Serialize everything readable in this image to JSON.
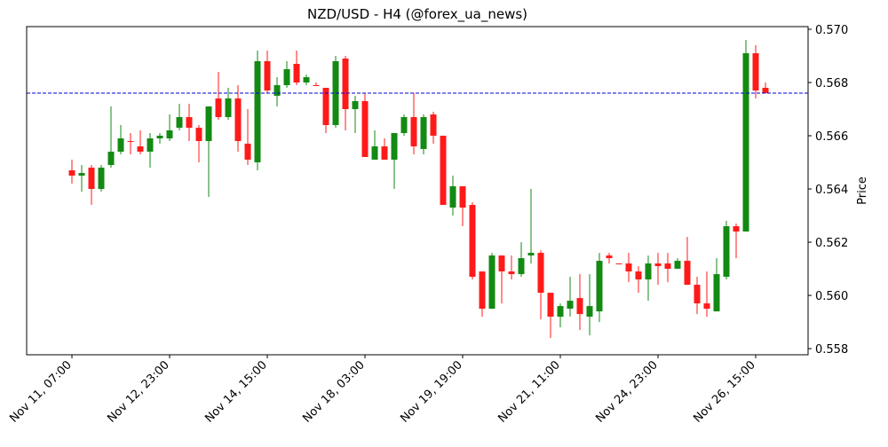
{
  "chart_data": {
    "type": "candlestick",
    "title": "NZD/USD - H4 (@forex_ua_news)",
    "y_label": "Price",
    "categories": [
      "Nov 11, 07:00",
      null,
      null,
      null,
      null,
      null,
      null,
      null,
      null,
      null,
      "Nov 12, 23:00",
      null,
      null,
      null,
      null,
      null,
      null,
      null,
      null,
      null,
      "Nov 14, 15:00",
      null,
      null,
      null,
      null,
      null,
      null,
      null,
      null,
      null,
      "Nov 18, 03:00",
      null,
      null,
      null,
      null,
      null,
      null,
      null,
      null,
      null,
      "Nov 19, 19:00",
      null,
      null,
      null,
      null,
      null,
      null,
      null,
      null,
      null,
      "Nov 21, 11:00",
      null,
      null,
      null,
      null,
      null,
      null,
      null,
      null,
      null,
      "Nov 24, 23:00",
      null,
      null,
      null,
      null,
      null,
      null,
      null,
      null,
      null,
      "Nov 26, 15:00",
      null
    ],
    "open": [
      0.5647,
      0.5645,
      0.5648,
      0.564,
      0.5649,
      0.5654,
      0.5658,
      0.5656,
      0.5654,
      0.5659,
      0.5659,
      0.5663,
      0.5667,
      0.5663,
      0.5658,
      0.5674,
      0.5667,
      0.5674,
      0.5657,
      0.565,
      0.5688,
      0.5675,
      0.5679,
      0.5687,
      0.568,
      0.5679,
      0.5678,
      0.5664,
      0.5689,
      0.567,
      0.5673,
      0.5651,
      0.5656,
      0.5651,
      0.5661,
      0.5667,
      0.5655,
      0.5668,
      0.566,
      0.5633,
      0.5641,
      0.5634,
      0.5609,
      0.5595,
      0.5615,
      0.5609,
      0.5608,
      0.5615,
      0.5616,
      0.5601,
      0.5592,
      0.5595,
      0.5599,
      0.5592,
      0.5594,
      0.5615,
      0.5612,
      0.5612,
      0.5609,
      0.5606,
      0.5612,
      0.5612,
      0.561,
      0.5613,
      0.5604,
      0.5597,
      0.5594,
      0.5607,
      0.5626,
      0.5624,
      0.5691,
      0.5678
    ],
    "high": [
      0.5651,
      0.5649,
      0.5649,
      0.5649,
      0.5671,
      0.5664,
      0.5661,
      0.5662,
      0.5661,
      0.5661,
      0.5668,
      0.5672,
      0.5672,
      0.5664,
      0.5671,
      0.5684,
      0.5678,
      0.5679,
      0.567,
      0.5692,
      0.5692,
      0.5682,
      0.5688,
      0.5692,
      0.5683,
      0.568,
      0.5678,
      0.569,
      0.569,
      0.5675,
      0.5676,
      0.5662,
      0.5659,
      0.5661,
      0.5668,
      0.5676,
      0.5668,
      0.5669,
      0.566,
      0.5645,
      0.5641,
      0.5635,
      0.5609,
      0.5616,
      0.5615,
      0.5615,
      0.562,
      0.564,
      0.5617,
      0.5601,
      0.5597,
      0.5607,
      0.5608,
      0.5608,
      0.5616,
      0.5616,
      0.5612,
      0.5616,
      0.5611,
      0.5615,
      0.5616,
      0.5616,
      0.5614,
      0.5622,
      0.5607,
      0.5609,
      0.5614,
      0.5628,
      0.5627,
      0.5696,
      0.5694,
      0.568
    ],
    "low": [
      0.5642,
      0.5639,
      0.5634,
      0.5639,
      0.5648,
      0.5653,
      0.5653,
      0.5653,
      0.5648,
      0.5657,
      0.5658,
      0.5662,
      0.5658,
      0.565,
      0.5637,
      0.5666,
      0.5666,
      0.5654,
      0.5649,
      0.5647,
      0.5676,
      0.5671,
      0.5678,
      0.5679,
      0.5679,
      0.5679,
      0.5661,
      0.5663,
      0.5662,
      0.5661,
      0.5652,
      0.5651,
      0.5651,
      0.564,
      0.566,
      0.5653,
      0.5653,
      0.5657,
      0.5634,
      0.563,
      0.5626,
      0.5606,
      0.5592,
      0.5595,
      0.5597,
      0.5606,
      0.5607,
      0.5612,
      0.5591,
      0.5584,
      0.5588,
      0.5592,
      0.5587,
      0.5585,
      0.559,
      0.5612,
      0.5612,
      0.5605,
      0.5601,
      0.5598,
      0.5604,
      0.5605,
      0.561,
      0.5604,
      0.5593,
      0.5592,
      0.5594,
      0.5606,
      0.5614,
      0.5624,
      0.5674,
      0.5676
    ],
    "close": [
      0.5645,
      0.5646,
      0.564,
      0.5648,
      0.5654,
      0.5659,
      0.5658,
      0.5654,
      0.5659,
      0.566,
      0.5662,
      0.5667,
      0.5663,
      0.5658,
      0.5671,
      0.5667,
      0.5674,
      0.5658,
      0.5651,
      0.5688,
      0.5677,
      0.5679,
      0.5685,
      0.568,
      0.5682,
      0.5679,
      0.5664,
      0.5688,
      0.567,
      0.5673,
      0.5652,
      0.5656,
      0.5651,
      0.5661,
      0.5667,
      0.5656,
      0.5667,
      0.566,
      0.5634,
      0.5641,
      0.5633,
      0.5607,
      0.5595,
      0.5615,
      0.5609,
      0.5608,
      0.5614,
      0.5616,
      0.5601,
      0.5592,
      0.5596,
      0.5598,
      0.5593,
      0.5596,
      0.5613,
      0.5614,
      0.5612,
      0.5609,
      0.5606,
      0.5612,
      0.5611,
      0.561,
      0.5613,
      0.5604,
      0.5597,
      0.5595,
      0.5608,
      0.5626,
      0.5624,
      0.5691,
      0.5677,
      0.5676
    ],
    "up_color": "#138a13",
    "down_color": "#ff1a1a",
    "hline": {
      "value": 0.5676,
      "color": "#0000dd"
    },
    "ylim": [
      0.55777,
      0.5701
    ],
    "yticks": [
      0.558,
      {
        "value": 0.56,
        "label": "0.560"
      },
      0.562,
      0.564,
      0.566,
      0.568,
      {
        "value": 0.57,
        "label": "0.570"
      }
    ]
  }
}
